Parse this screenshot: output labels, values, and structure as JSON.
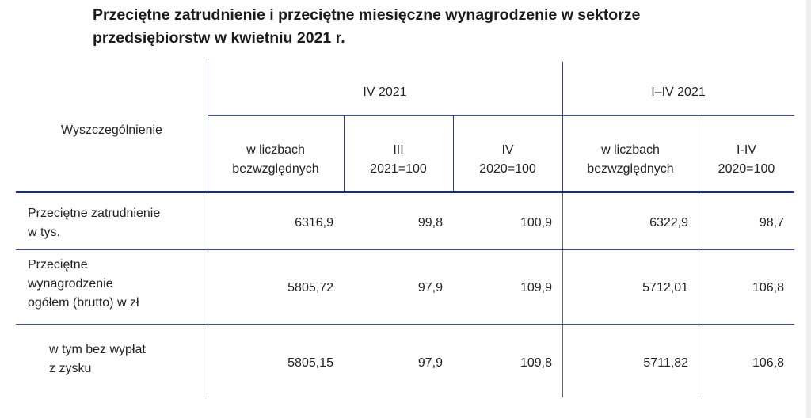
{
  "title": {
    "line1": "Przeciętne zatrudnienie i przeciętne miesięczne wynagrodzenie w sektorze",
    "line2": "przedsiębiorstw w kwietniu 2021 r."
  },
  "table": {
    "row_header": "Wyszczególnienie",
    "group_headers": [
      "IV 2021",
      "I–IV 2021"
    ],
    "column_headers": [
      [
        "w liczbach",
        "bezwzględnych"
      ],
      [
        "III",
        "2021=100"
      ],
      [
        "IV",
        "2020=100"
      ],
      [
        "w liczbach",
        "bezwzględnych"
      ],
      [
        "I-IV",
        "2020=100"
      ]
    ],
    "rows": [
      {
        "label": [
          "Przeciętne zatrudnienie",
          "w tys."
        ],
        "values": [
          "6316,9",
          "99,8",
          "100,9",
          "6322,9",
          "98,7"
        ]
      },
      {
        "label": [
          "Przeciętne",
          "wynagrodzenie",
          "ogółem (brutto) w zł"
        ],
        "values": [
          "5805,72",
          "97,9",
          "109,9",
          "5712,01",
          "106,8"
        ]
      },
      {
        "label": [
          "w tym bez wypłat",
          "z zysku"
        ],
        "values": [
          "5805,15",
          "97,9",
          "109,8",
          "5711,82",
          "106,8"
        ]
      }
    ]
  }
}
